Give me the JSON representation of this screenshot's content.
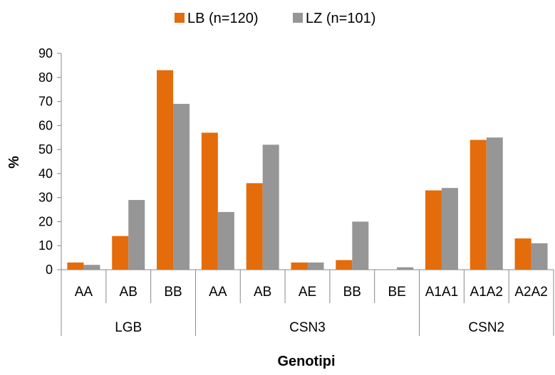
{
  "chart_data": {
    "type": "bar",
    "title": "",
    "xlabel": "Genotipi",
    "ylabel": "%",
    "ylim": [
      0,
      90
    ],
    "yticks": [
      0,
      10,
      20,
      30,
      40,
      50,
      60,
      70,
      80,
      90
    ],
    "grid": false,
    "legend_position": "top",
    "groups": [
      {
        "label": "LGB",
        "categories": [
          "AA",
          "AB",
          "BB"
        ]
      },
      {
        "label": "CSN3",
        "categories": [
          "AA",
          "AB",
          "AE",
          "BB",
          "BE"
        ]
      },
      {
        "label": "CSN2",
        "categories": [
          "A1A1",
          "A1A2",
          "A2A2"
        ]
      }
    ],
    "series": [
      {
        "name": "LB (n=120)",
        "color": "#E46C0A",
        "values": [
          3,
          14,
          83,
          57,
          36,
          3,
          4,
          0,
          33,
          54,
          13
        ]
      },
      {
        "name": "LZ (n=101)",
        "color": "#969696",
        "values": [
          2,
          29,
          69,
          24,
          52,
          3,
          20,
          1,
          34,
          55,
          11
        ]
      }
    ]
  }
}
